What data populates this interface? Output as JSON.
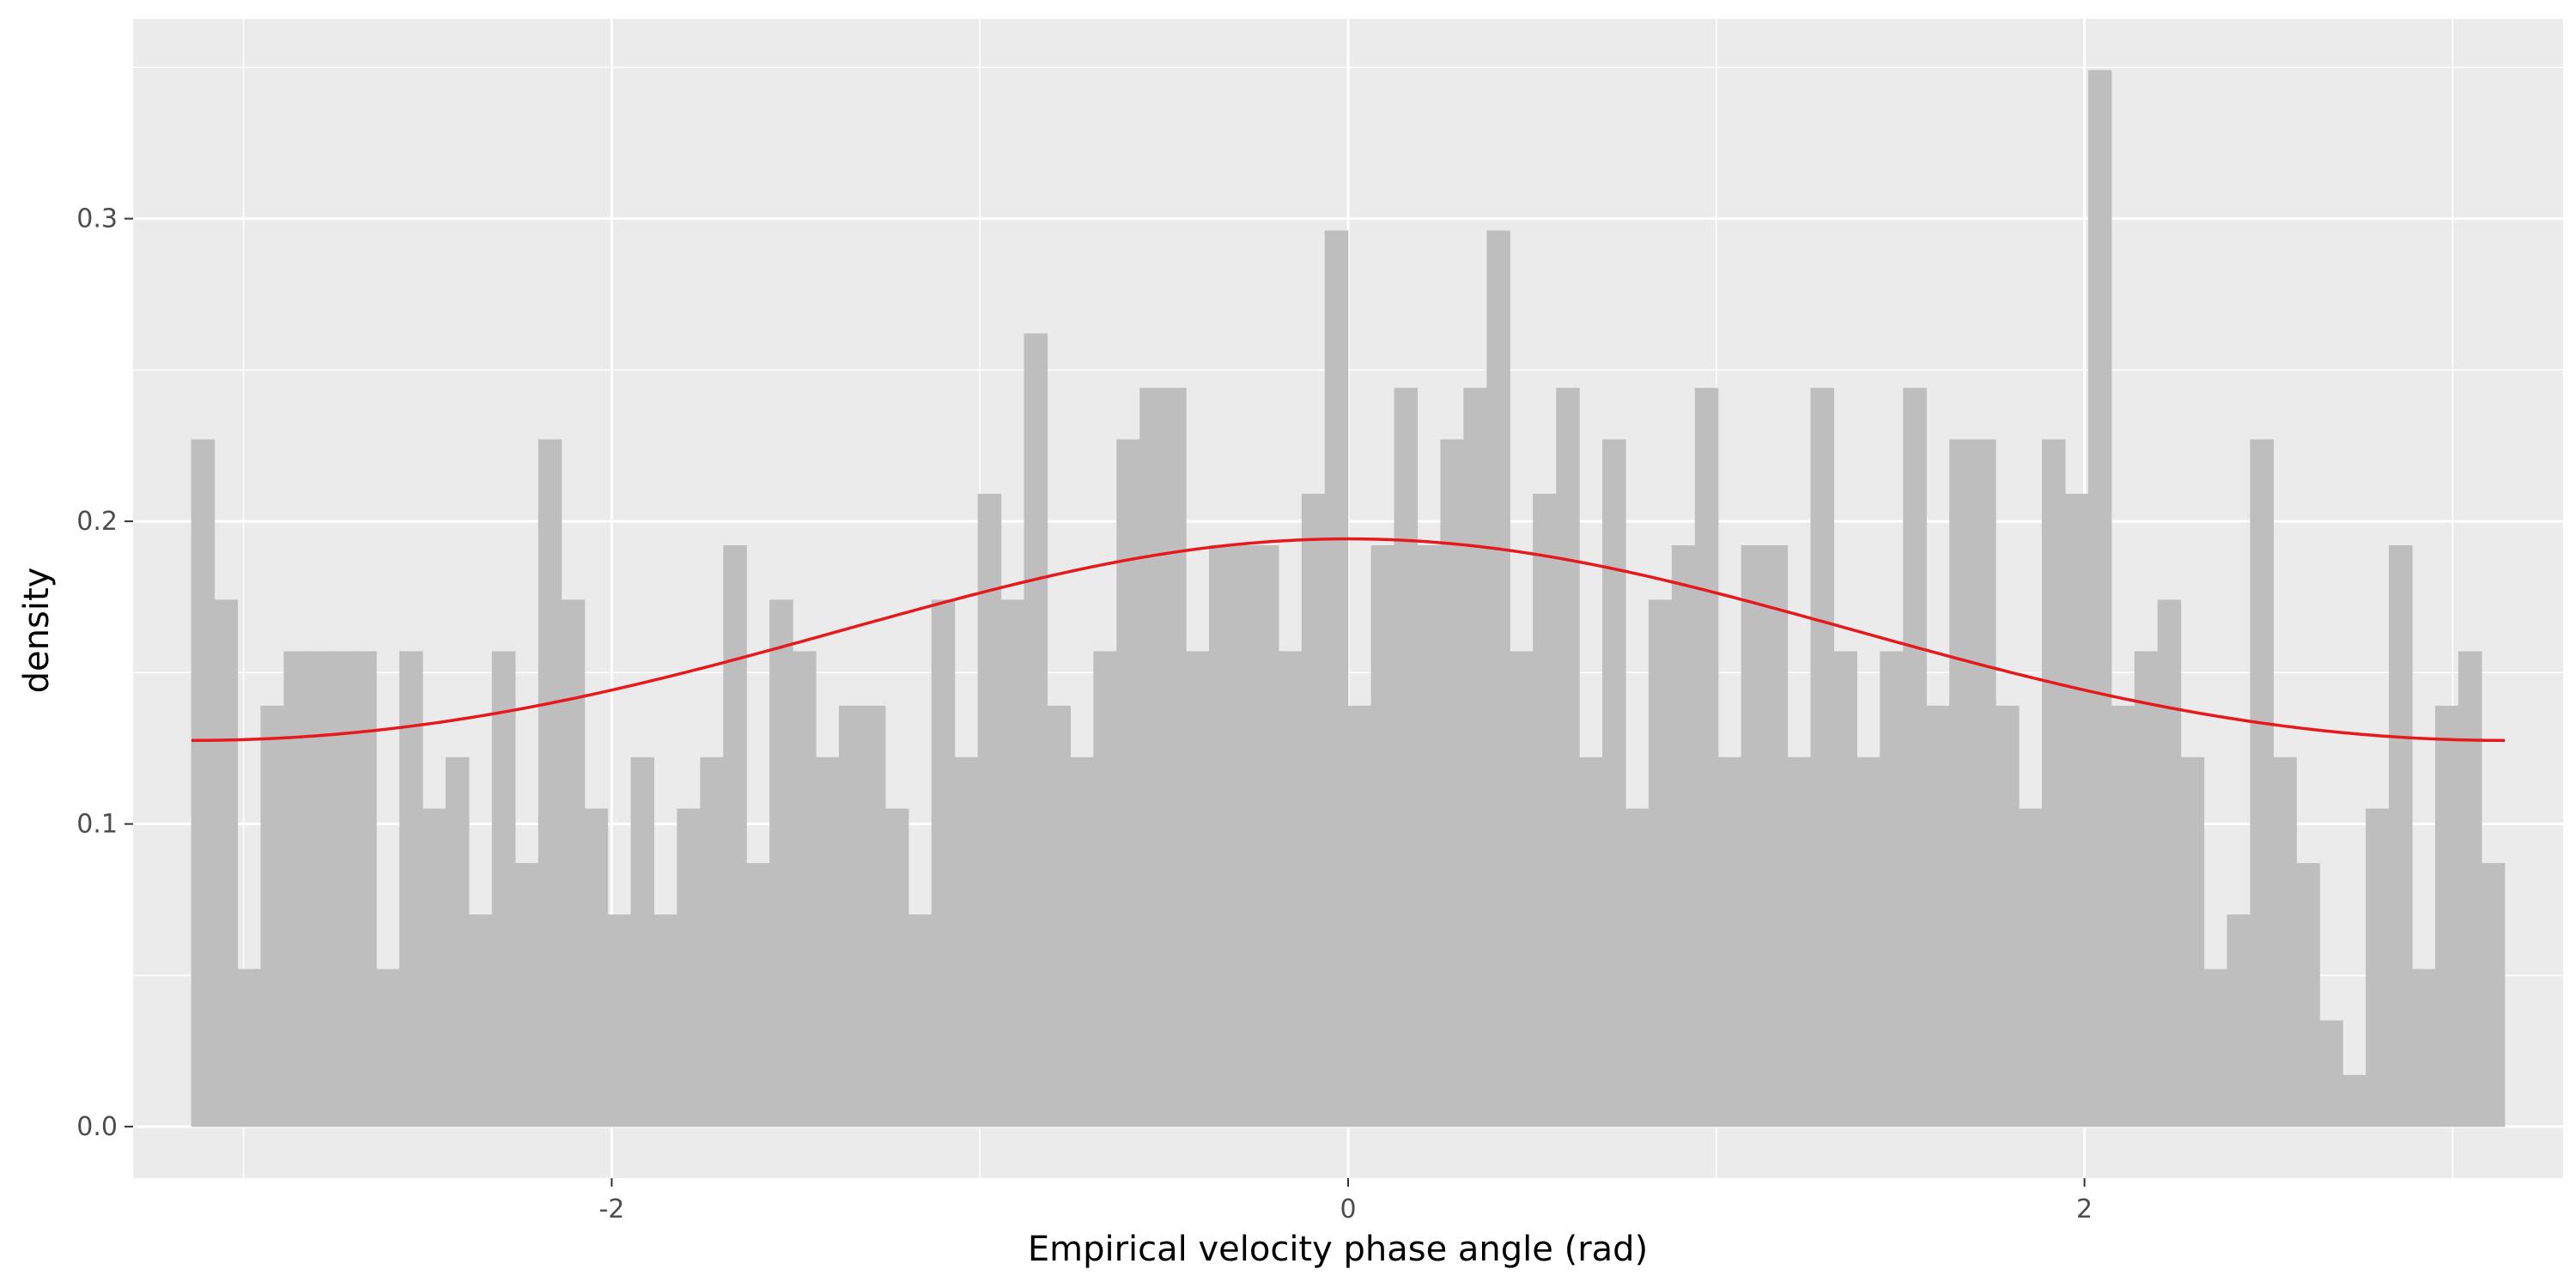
{
  "chart_data": {
    "type": "bar",
    "subtype": "histogram_with_density_curve",
    "title": "",
    "xlabel": "Empirical velocity phase angle (rad)",
    "ylabel": "density",
    "xlim": [
      -3.3,
      3.3
    ],
    "ylim": [
      -0.017,
      0.366
    ],
    "x_ticks": [
      -2,
      0,
      2
    ],
    "x_tick_labels": [
      "-2",
      "0",
      "2"
    ],
    "y_ticks": [
      0.0,
      0.1,
      0.2,
      0.3
    ],
    "y_tick_labels": [
      "0.0",
      "0.1",
      "0.2",
      "0.3"
    ],
    "grid": true,
    "legend": "none",
    "bins": {
      "start": -3.1416,
      "end": 3.1416,
      "count": 100,
      "densities": [
        0.227,
        0.174,
        0.052,
        0.139,
        0.157,
        0.157,
        0.157,
        0.157,
        0.052,
        0.157,
        0.105,
        0.122,
        0.07,
        0.157,
        0.087,
        0.227,
        0.174,
        0.105,
        0.07,
        0.122,
        0.07,
        0.105,
        0.122,
        0.192,
        0.087,
        0.174,
        0.157,
        0.122,
        0.139,
        0.139,
        0.105,
        0.07,
        0.174,
        0.122,
        0.209,
        0.174,
        0.262,
        0.139,
        0.122,
        0.157,
        0.227,
        0.244,
        0.244,
        0.157,
        0.192,
        0.192,
        0.192,
        0.157,
        0.209,
        0.296,
        0.139,
        0.192,
        0.244,
        0.192,
        0.227,
        0.244,
        0.296,
        0.157,
        0.209,
        0.244,
        0.122,
        0.227,
        0.105,
        0.174,
        0.192,
        0.244,
        0.122,
        0.192,
        0.192,
        0.122,
        0.244,
        0.157,
        0.122,
        0.157,
        0.244,
        0.139,
        0.227,
        0.227,
        0.139,
        0.105,
        0.227,
        0.209,
        0.349,
        0.139,
        0.157,
        0.174,
        0.122,
        0.052,
        0.07,
        0.227,
        0.122,
        0.087,
        0.035,
        0.017,
        0.105,
        0.192,
        0.052,
        0.139,
        0.157,
        0.087
      ]
    },
    "density_curve": {
      "distribution": "von_mises",
      "mu": 0.0,
      "kappa": 0.21,
      "x_range": [
        -3.1416,
        3.1416
      ]
    },
    "colors": {
      "panel_background": "#ebebeb",
      "grid_major": "#ffffff",
      "bar_fill": "#bebebe",
      "curve": "#e41a1c",
      "tick_text": "#4d4d4d",
      "axis_title": "#000000"
    }
  }
}
